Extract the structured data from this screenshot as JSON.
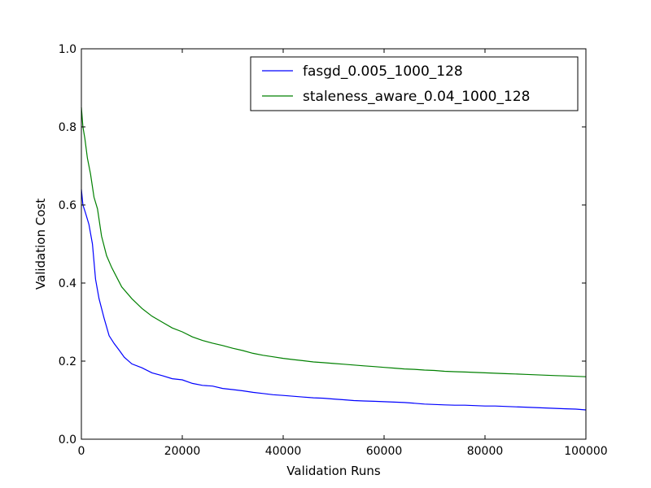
{
  "chart_data": {
    "type": "line",
    "title": "",
    "xlabel": "Validation Runs",
    "ylabel": "Validation Cost",
    "xlim": [
      0,
      100000
    ],
    "ylim": [
      0.0,
      1.0
    ],
    "x_ticks": [
      "0",
      "20000",
      "40000",
      "60000",
      "80000",
      "100000"
    ],
    "y_ticks": [
      "0.0",
      "0.2",
      "0.4",
      "0.6",
      "0.8",
      "1.0"
    ],
    "grid": false,
    "legend_position": "top-right",
    "series": [
      {
        "name": "fasgd_0.005_1000_128",
        "color": "#0000ff",
        "x": [
          0,
          300,
          800,
          1500,
          2200,
          2800,
          3500,
          4500,
          5500,
          6500,
          7500,
          8500,
          10000,
          12000,
          14000,
          16000,
          18000,
          20000,
          22000,
          24000,
          26000,
          28000,
          30000,
          32000,
          34000,
          36000,
          38000,
          40000,
          42000,
          44000,
          46000,
          48000,
          50000,
          52000,
          54000,
          56000,
          58000,
          60000,
          62000,
          64000,
          66000,
          68000,
          70000,
          72000,
          74000,
          76000,
          78000,
          80000,
          82000,
          84000,
          86000,
          88000,
          90000,
          92000,
          94000,
          96000,
          98000,
          100000
        ],
        "y": [
          0.64,
          0.6,
          0.58,
          0.55,
          0.5,
          0.41,
          0.36,
          0.31,
          0.265,
          0.245,
          0.228,
          0.21,
          0.193,
          0.183,
          0.17,
          0.163,
          0.155,
          0.152,
          0.143,
          0.138,
          0.136,
          0.13,
          0.127,
          0.124,
          0.12,
          0.117,
          0.114,
          0.112,
          0.11,
          0.108,
          0.106,
          0.105,
          0.103,
          0.101,
          0.099,
          0.098,
          0.097,
          0.096,
          0.095,
          0.094,
          0.092,
          0.09,
          0.089,
          0.088,
          0.087,
          0.087,
          0.086,
          0.085,
          0.085,
          0.084,
          0.083,
          0.082,
          0.081,
          0.08,
          0.079,
          0.078,
          0.077,
          0.075
        ]
      },
      {
        "name": "staleness_aware_0.04_1000_128",
        "color": "#008000",
        "x": [
          0,
          300,
          700,
          1200,
          1800,
          2500,
          3200,
          4000,
          5000,
          6000,
          7000,
          8000,
          10000,
          12000,
          14000,
          16000,
          18000,
          20000,
          22000,
          24000,
          26000,
          28000,
          30000,
          32000,
          34000,
          36000,
          38000,
          40000,
          42000,
          44000,
          46000,
          48000,
          50000,
          52000,
          54000,
          56000,
          58000,
          60000,
          62000,
          64000,
          66000,
          68000,
          70000,
          72000,
          74000,
          76000,
          78000,
          80000,
          82000,
          84000,
          86000,
          88000,
          90000,
          92000,
          94000,
          96000,
          98000,
          100000
        ],
        "y": [
          0.85,
          0.8,
          0.77,
          0.72,
          0.68,
          0.62,
          0.59,
          0.52,
          0.47,
          0.44,
          0.415,
          0.39,
          0.36,
          0.335,
          0.315,
          0.3,
          0.285,
          0.275,
          0.262,
          0.253,
          0.246,
          0.24,
          0.233,
          0.227,
          0.22,
          0.215,
          0.211,
          0.207,
          0.204,
          0.201,
          0.198,
          0.196,
          0.194,
          0.192,
          0.19,
          0.188,
          0.186,
          0.184,
          0.182,
          0.18,
          0.179,
          0.177,
          0.176,
          0.174,
          0.173,
          0.172,
          0.171,
          0.17,
          0.169,
          0.168,
          0.167,
          0.166,
          0.165,
          0.164,
          0.163,
          0.162,
          0.161,
          0.16
        ]
      }
    ]
  }
}
